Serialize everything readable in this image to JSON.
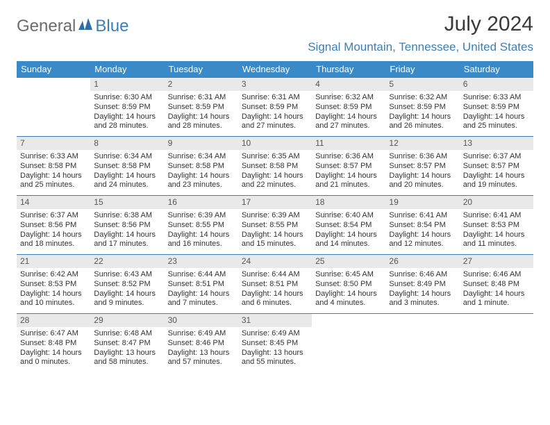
{
  "branding": {
    "word1": "General",
    "word2": "Blue",
    "text_color1": "#6c6c6c",
    "text_color2": "#3a7fb8",
    "mark_color": "#2f6fa6"
  },
  "header": {
    "title": "July 2024",
    "location": "Signal Mountain, Tennessee, United States",
    "title_color": "#3a3a3a",
    "location_color": "#3a7fb8"
  },
  "style": {
    "daynames_bg": "#3a8ac8",
    "daynames_text": "#ffffff",
    "daynum_bg": "#e9e9e9",
    "daynum_text": "#555555",
    "week_border": "#3a7fb8",
    "body_text": "#333333",
    "cell_fontsize": 11
  },
  "daynames": [
    "Sunday",
    "Monday",
    "Tuesday",
    "Wednesday",
    "Thursday",
    "Friday",
    "Saturday"
  ],
  "weeks": [
    [
      null,
      {
        "n": "1",
        "sunrise": "6:30 AM",
        "sunset": "8:59 PM",
        "daylight": "14 hours and 28 minutes."
      },
      {
        "n": "2",
        "sunrise": "6:31 AM",
        "sunset": "8:59 PM",
        "daylight": "14 hours and 28 minutes."
      },
      {
        "n": "3",
        "sunrise": "6:31 AM",
        "sunset": "8:59 PM",
        "daylight": "14 hours and 27 minutes."
      },
      {
        "n": "4",
        "sunrise": "6:32 AM",
        "sunset": "8:59 PM",
        "daylight": "14 hours and 27 minutes."
      },
      {
        "n": "5",
        "sunrise": "6:32 AM",
        "sunset": "8:59 PM",
        "daylight": "14 hours and 26 minutes."
      },
      {
        "n": "6",
        "sunrise": "6:33 AM",
        "sunset": "8:59 PM",
        "daylight": "14 hours and 25 minutes."
      }
    ],
    [
      {
        "n": "7",
        "sunrise": "6:33 AM",
        "sunset": "8:58 PM",
        "daylight": "14 hours and 25 minutes."
      },
      {
        "n": "8",
        "sunrise": "6:34 AM",
        "sunset": "8:58 PM",
        "daylight": "14 hours and 24 minutes."
      },
      {
        "n": "9",
        "sunrise": "6:34 AM",
        "sunset": "8:58 PM",
        "daylight": "14 hours and 23 minutes."
      },
      {
        "n": "10",
        "sunrise": "6:35 AM",
        "sunset": "8:58 PM",
        "daylight": "14 hours and 22 minutes."
      },
      {
        "n": "11",
        "sunrise": "6:36 AM",
        "sunset": "8:57 PM",
        "daylight": "14 hours and 21 minutes."
      },
      {
        "n": "12",
        "sunrise": "6:36 AM",
        "sunset": "8:57 PM",
        "daylight": "14 hours and 20 minutes."
      },
      {
        "n": "13",
        "sunrise": "6:37 AM",
        "sunset": "8:57 PM",
        "daylight": "14 hours and 19 minutes."
      }
    ],
    [
      {
        "n": "14",
        "sunrise": "6:37 AM",
        "sunset": "8:56 PM",
        "daylight": "14 hours and 18 minutes."
      },
      {
        "n": "15",
        "sunrise": "6:38 AM",
        "sunset": "8:56 PM",
        "daylight": "14 hours and 17 minutes."
      },
      {
        "n": "16",
        "sunrise": "6:39 AM",
        "sunset": "8:55 PM",
        "daylight": "14 hours and 16 minutes."
      },
      {
        "n": "17",
        "sunrise": "6:39 AM",
        "sunset": "8:55 PM",
        "daylight": "14 hours and 15 minutes."
      },
      {
        "n": "18",
        "sunrise": "6:40 AM",
        "sunset": "8:54 PM",
        "daylight": "14 hours and 14 minutes."
      },
      {
        "n": "19",
        "sunrise": "6:41 AM",
        "sunset": "8:54 PM",
        "daylight": "14 hours and 12 minutes."
      },
      {
        "n": "20",
        "sunrise": "6:41 AM",
        "sunset": "8:53 PM",
        "daylight": "14 hours and 11 minutes."
      }
    ],
    [
      {
        "n": "21",
        "sunrise": "6:42 AM",
        "sunset": "8:53 PM",
        "daylight": "14 hours and 10 minutes."
      },
      {
        "n": "22",
        "sunrise": "6:43 AM",
        "sunset": "8:52 PM",
        "daylight": "14 hours and 9 minutes."
      },
      {
        "n": "23",
        "sunrise": "6:44 AM",
        "sunset": "8:51 PM",
        "daylight": "14 hours and 7 minutes."
      },
      {
        "n": "24",
        "sunrise": "6:44 AM",
        "sunset": "8:51 PM",
        "daylight": "14 hours and 6 minutes."
      },
      {
        "n": "25",
        "sunrise": "6:45 AM",
        "sunset": "8:50 PM",
        "daylight": "14 hours and 4 minutes."
      },
      {
        "n": "26",
        "sunrise": "6:46 AM",
        "sunset": "8:49 PM",
        "daylight": "14 hours and 3 minutes."
      },
      {
        "n": "27",
        "sunrise": "6:46 AM",
        "sunset": "8:48 PM",
        "daylight": "14 hours and 1 minute."
      }
    ],
    [
      {
        "n": "28",
        "sunrise": "6:47 AM",
        "sunset": "8:48 PM",
        "daylight": "14 hours and 0 minutes."
      },
      {
        "n": "29",
        "sunrise": "6:48 AM",
        "sunset": "8:47 PM",
        "daylight": "13 hours and 58 minutes."
      },
      {
        "n": "30",
        "sunrise": "6:49 AM",
        "sunset": "8:46 PM",
        "daylight": "13 hours and 57 minutes."
      },
      {
        "n": "31",
        "sunrise": "6:49 AM",
        "sunset": "8:45 PM",
        "daylight": "13 hours and 55 minutes."
      },
      null,
      null,
      null
    ]
  ],
  "labels": {
    "sunrise_prefix": "Sunrise: ",
    "sunset_prefix": "Sunset: ",
    "daylight_prefix": "Daylight: "
  }
}
